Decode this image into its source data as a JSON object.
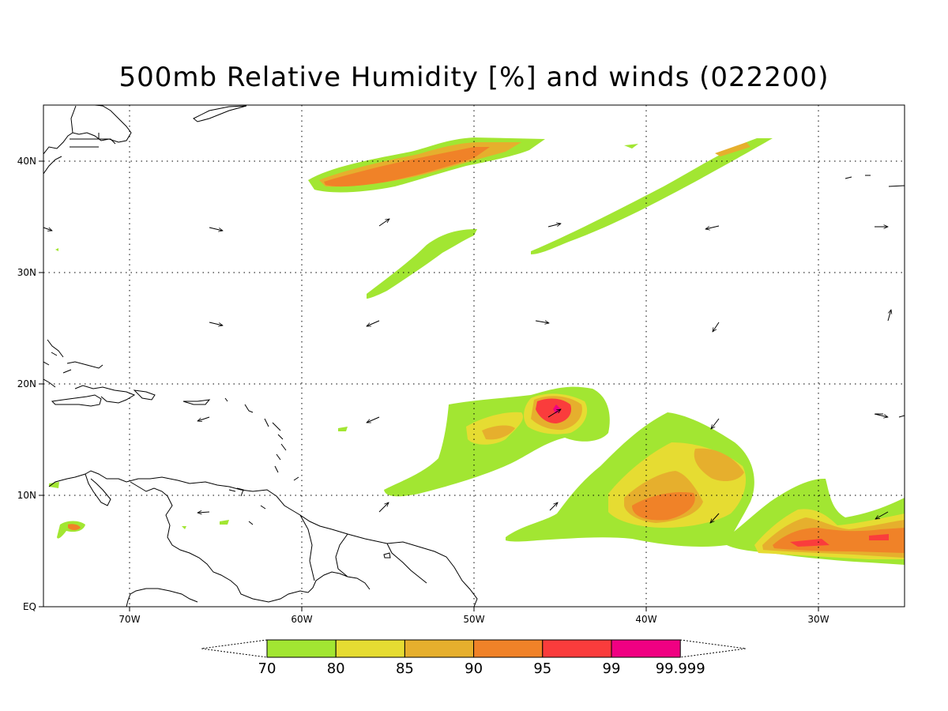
{
  "title": "500mb Relative Humidity [%] and winds (022200)",
  "lat_labels": [
    "40N",
    "30N",
    "20N",
    "10N",
    "EQ"
  ],
  "lon_labels": [
    "70W",
    "60W",
    "50W",
    "40W",
    "30W"
  ],
  "colorbar": {
    "labels": [
      "70",
      "80",
      "85",
      "90",
      "95",
      "99",
      "99.999"
    ],
    "colors": [
      "#a2e632",
      "#e6dc32",
      "#e6af2d",
      "#f08228",
      "#fa3c3c",
      "#f00082"
    ]
  },
  "colors": {
    "rh70": "#a2e632",
    "rh80": "#e6dc32",
    "rh85": "#e6af2d",
    "rh90": "#f08228",
    "rh95": "#fa3c3c",
    "rh99": "#f00082"
  }
}
